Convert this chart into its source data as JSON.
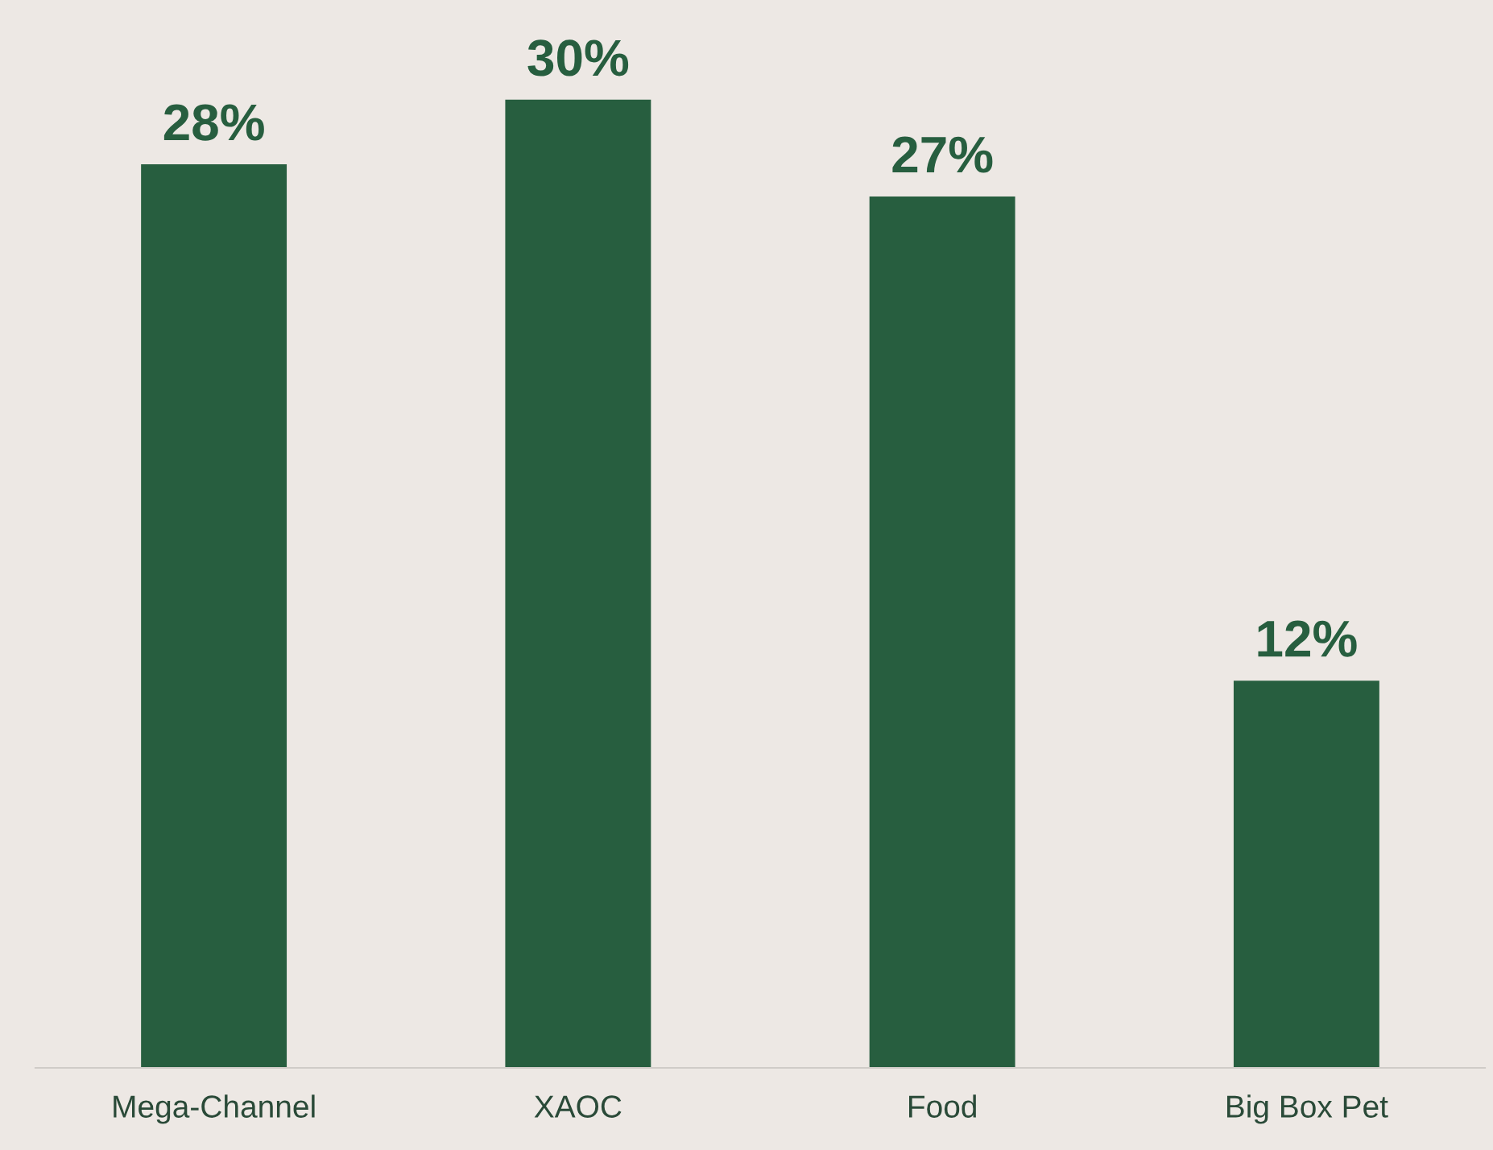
{
  "chart_data": {
    "type": "bar",
    "categories": [
      "Mega-Channel",
      "XAOC",
      "Food",
      "Big Box Pet"
    ],
    "values": [
      28,
      30,
      27,
      12
    ],
    "value_labels": [
      "28%",
      "30%",
      "27%",
      "12%"
    ],
    "color": "#275e3f",
    "grid": false,
    "legend": false
  }
}
